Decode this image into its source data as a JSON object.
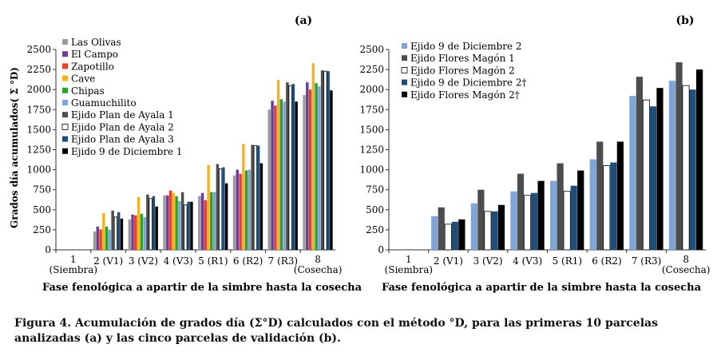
{
  "figure": {
    "caption": "Figura 4. Acumulación de grados día (Σ°D) calculados con el método °D, para las primeras 10 parcelas analizadas (a) y las cinco parcelas de validación (b)."
  },
  "chart_data": [
    {
      "type": "bar",
      "panel_label": "(a)",
      "ylabel": "Grados día acumulados( Σ °D)",
      "xlabel": "Fase fenológica a apartir de la simbre hasta la cosecha",
      "ylim": [
        0,
        2500
      ],
      "yticks": [
        0,
        250,
        500,
        750,
        1000,
        1250,
        1500,
        1750,
        2000,
        2250,
        2500
      ],
      "categories": [
        "1\n(Siembra)",
        "2 (V1)",
        "3 (V2)",
        "4 (V3)",
        "5 (R1)",
        "6 (R2)",
        "7 (R3)",
        "8\n(Cosecha)"
      ],
      "legend_position": "top-left",
      "series": [
        {
          "name": "Las Olivas",
          "color": "#9b9b9b",
          "fill": "solid",
          "values": [
            0,
            230,
            380,
            680,
            670,
            930,
            1750,
            1930
          ]
        },
        {
          "name": "El Campo",
          "color": "#6a3d9a",
          "fill": "solid",
          "values": [
            0,
            290,
            440,
            680,
            710,
            1000,
            1860,
            2090
          ]
        },
        {
          "name": "Zapotillo",
          "color": "#e8402e",
          "fill": "solid",
          "values": [
            0,
            255,
            430,
            740,
            620,
            950,
            1800,
            2000
          ]
        },
        {
          "name": "Cave",
          "color": "#f5b323",
          "fill": "solid",
          "values": [
            0,
            460,
            660,
            710,
            1060,
            1320,
            2120,
            2330
          ]
        },
        {
          "name": "Chipas",
          "color": "#2ca02c",
          "fill": "solid",
          "values": [
            0,
            290,
            450,
            670,
            720,
            990,
            1880,
            2080
          ]
        },
        {
          "name": "Guamuchilito",
          "color": "#7fa6d6",
          "fill": "solid",
          "values": [
            0,
            250,
            410,
            610,
            720,
            1000,
            1850,
            2040
          ]
        },
        {
          "name": "Ejido Plan de Ayala 1",
          "color": "#4d4d4d",
          "fill": "solid",
          "values": [
            0,
            490,
            690,
            720,
            1070,
            1310,
            2090,
            2240
          ]
        },
        {
          "name": "Ejido Plan de Ayala 2",
          "color": "#ffffff",
          "fill": "outline",
          "values": [
            0,
            410,
            640,
            560,
            1010,
            1300,
            2050,
            2230
          ]
        },
        {
          "name": "Ejido Plan de Ayala 3",
          "color": "#1f4e79",
          "fill": "solid",
          "values": [
            0,
            470,
            670,
            600,
            1030,
            1300,
            2070,
            2230
          ]
        },
        {
          "name": "Ejido 9 de Diciembre 1",
          "color": "#000000",
          "fill": "solid",
          "values": [
            0,
            390,
            540,
            600,
            830,
            1080,
            1850,
            1990
          ]
        }
      ]
    },
    {
      "type": "bar",
      "panel_label": "(b)",
      "xlabel": "Fase fenológica a apartir de la simbre hasta la cosecha",
      "ylim": [
        0,
        2500
      ],
      "yticks": [
        0,
        250,
        500,
        750,
        1000,
        1250,
        1500,
        1750,
        2000,
        2250,
        2500
      ],
      "categories": [
        "1\n(Siembra)",
        "2 (V1)",
        "3 (V2)",
        "4 (V3)",
        "5 (R1)",
        "6 (R2)",
        "7 (R3)",
        "8\n(Cosecha)"
      ],
      "legend_position": "top-left",
      "series": [
        {
          "name": "Ejido 9 de Diciembre 2",
          "color": "#7fa6d6",
          "fill": "solid",
          "values": [
            0,
            420,
            580,
            730,
            860,
            1130,
            1920,
            2110
          ]
        },
        {
          "name": "Ejido Flores Magón 1",
          "color": "#4d4d4d",
          "fill": "solid",
          "values": [
            0,
            530,
            750,
            950,
            1080,
            1350,
            2160,
            2340
          ]
        },
        {
          "name": "Ejido Flores Magón 2",
          "color": "#ffffff",
          "fill": "outline",
          "values": [
            0,
            320,
            480,
            680,
            730,
            1050,
            1870,
            2050
          ]
        },
        {
          "name": "Ejido 9 de Diciembre 2†",
          "color": "#1f4e79",
          "fill": "solid",
          "values": [
            0,
            350,
            480,
            710,
            800,
            1090,
            1790,
            2000
          ]
        },
        {
          "name": "Ejido Flores Magón 2†",
          "color": "#000000",
          "fill": "solid",
          "values": [
            0,
            380,
            560,
            860,
            990,
            1350,
            2020,
            2250
          ]
        }
      ]
    }
  ]
}
